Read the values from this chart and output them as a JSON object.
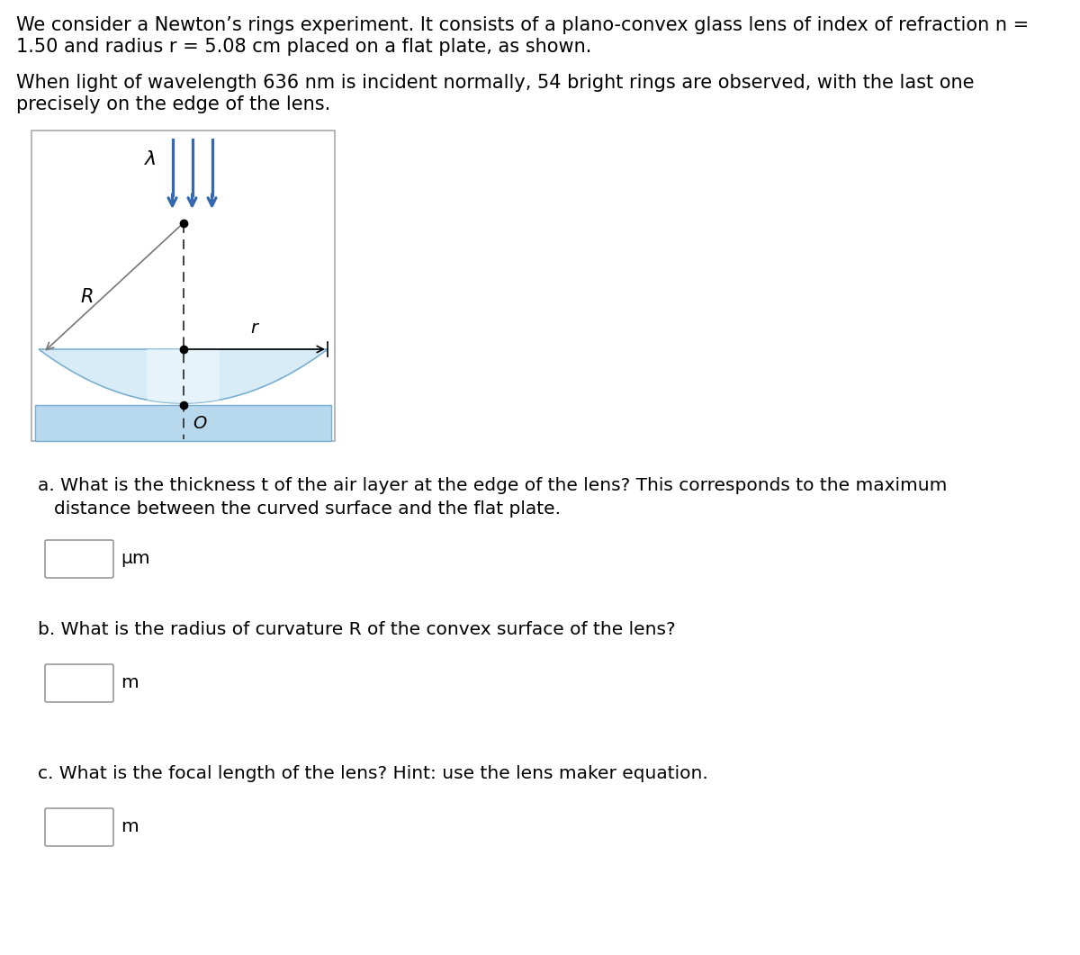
{
  "title_text1": "We consider a Newton’s rings experiment. It consists of a plano-convex glass lens of index of refraction n =",
  "title_text2": "1.50 and radius r = 5.08 cm placed on a flat plate, as shown.",
  "title_text3": "When light of wavelength 636 nm is incident normally, 54 bright rings are observed, with the last one",
  "title_text4": "precisely on the edge of the lens.",
  "question_a_line1": "a. What is the thickness t of the air layer at the edge of the lens? This corresponds to the maximum",
  "question_a_line2": "   distance between the curved surface and the flat plate.",
  "unit_a": "μm",
  "question_b": "b. What is the radius of curvature R of the convex surface of the lens?",
  "unit_b": "m",
  "question_c": "c. What is the focal length of the lens? Hint: use the lens maker equation.",
  "unit_c": "m",
  "bg_color": "#ffffff",
  "text_color": "#000000",
  "blue_arrow_color": "#3568b0",
  "lens_fill_light": "#d8ecf8",
  "lens_fill_dark": "#a0c8e8",
  "lens_edge_color": "#7aafd0",
  "plate_fill_color": "#b8d8ee",
  "plate_edge_color": "#7aafd0",
  "diagram_box_edge": "#aaaaaa",
  "dashed_line_color": "#333333",
  "R_line_color": "#777777",
  "font_size_main": 15,
  "font_size_question": 14.5,
  "font_size_diagram": 13,
  "font_family": "DejaVu Sans"
}
